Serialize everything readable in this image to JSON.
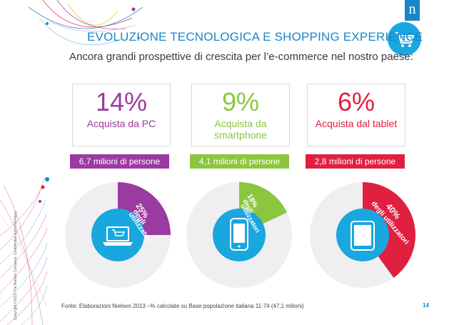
{
  "slide": {
    "title": "EVOLUZIONE TECNOLOGICA E SHOPPING EXPERIENCE",
    "subtitle": "Ancora grandi prospettive di crescita per l’e-commerce nel nostro paese:",
    "logo_letter": "n",
    "cart_icon": "shopping-cart-icon",
    "source": "Fonte: Elaborazioni Nielsen 2013 –% calcolate su Base popolazione italiana 11-74 (47,1 milioni)",
    "page_number": "14",
    "copyright": "Copyright ©2013 The Nielsen Company. Confidential and proprietary."
  },
  "colors": {
    "brand_blue": "#1a86c8",
    "pc": "#9b3aa0",
    "smartphone": "#8cc63f",
    "tablet": "#e0203f",
    "wheel_gray": "#efeff1",
    "icon_circle": "#1aa6df"
  },
  "stats": [
    {
      "key": "pc",
      "percent": "14%",
      "label_line1": "Acquista da PC",
      "label_line2": "",
      "people": "6,7 milioni di persone",
      "users_pct": "25%",
      "users_word1": "degli",
      "users_word2": "utilizzatori",
      "share": 0.25,
      "icon": "laptop-cart-icon"
    },
    {
      "key": "smartphone",
      "percent": "9%",
      "label_line1": "Acquista da",
      "label_line2": "smartphone",
      "people": "4,1 milioni di persone",
      "users_pct": "18%",
      "users_word1": "degli",
      "users_word2": "utilizzatori",
      "share": 0.18,
      "icon": "smartphone-icon"
    },
    {
      "key": "tablet",
      "percent": "6%",
      "label_line1": "Acquista dal tablet",
      "label_line2": "",
      "people": "2,8 milioni di persone",
      "users_pct": "40%",
      "users_word1": "degli utilizzatori",
      "users_word2": "",
      "share": 0.4,
      "icon": "tablet-icon"
    }
  ]
}
